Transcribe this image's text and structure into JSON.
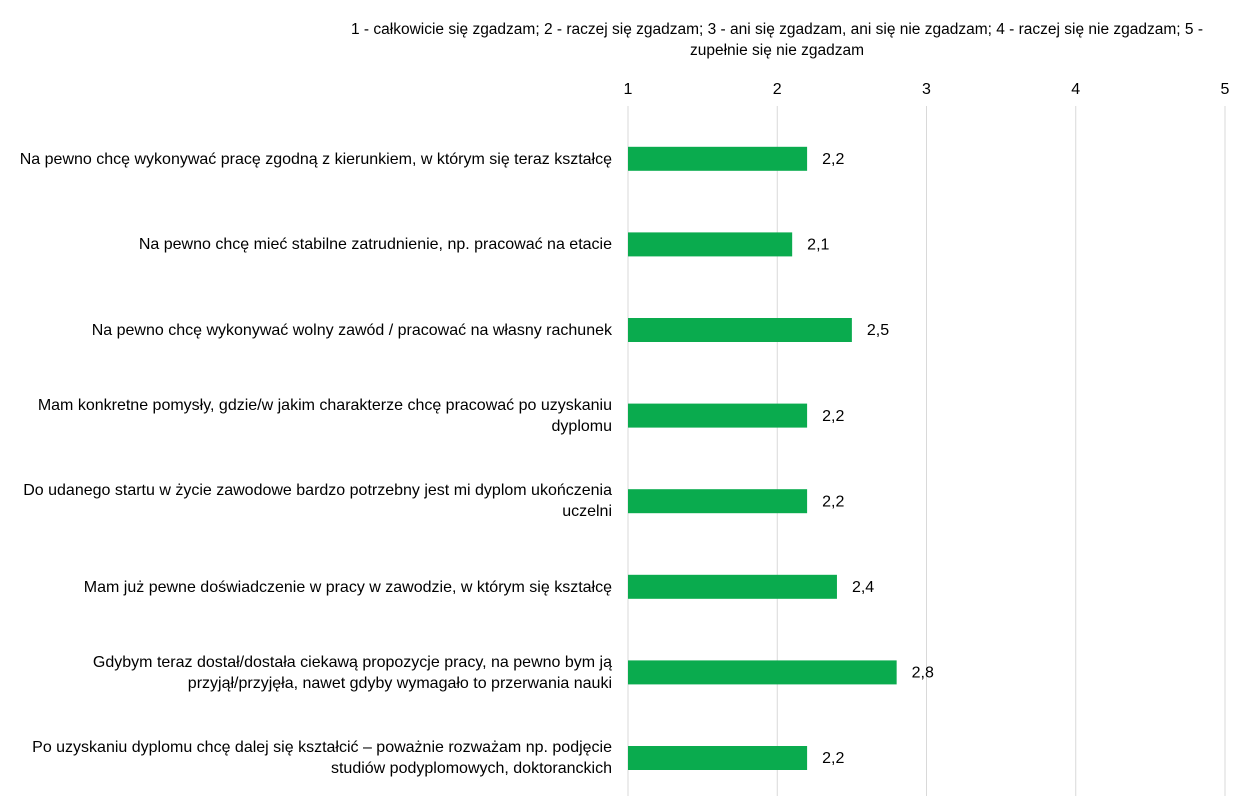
{
  "chart_data": {
    "type": "bar",
    "orientation": "horizontal",
    "title": "1 - całkowicie się zgadzam; 2 - raczej się zgadzam; 3 - ani się zgadzam, ani się nie zgadzam; 4 - raczej się nie zgadzam; 5 - zupełnie się nie zgadzam",
    "categories": [
      "Na pewno chcę wykonywać pracę zgodną z kierunkiem, w którym się teraz kształcę",
      "Na pewno chcę mieć stabilne zatrudnienie, np. pracować na etacie",
      "Na pewno chcę wykonywać wolny zawód / pracować na własny rachunek",
      "Mam konkretne pomysły, gdzie/w jakim charakterze chcę pracować po uzyskaniu dyplomu",
      "Do udanego startu w życie zawodowe bardzo potrzebny jest mi dyplom ukończenia uczelni",
      "Mam już pewne doświadczenie w pracy w zawodzie, w którym się kształcę",
      "Gdybym teraz dostał/dostała ciekawą propozycje pracy, na pewno bym ją przyjął/przyjęła, nawet gdyby wymagało to przerwania nauki",
      "Po uzyskaniu dyplomu chcę dalej się kształcić – poważnie rozważam np. podjęcie studiów podyplomowych, doktoranckich"
    ],
    "values": [
      2.2,
      2.1,
      2.5,
      2.2,
      2.2,
      2.4,
      2.8,
      2.2
    ],
    "value_labels": [
      "2,2",
      "2,1",
      "2,5",
      "2,2",
      "2,2",
      "2,4",
      "2,8",
      "2,2"
    ],
    "color": "#0aab4e",
    "xlim": [
      1,
      5
    ],
    "xticks": [
      1,
      2,
      3,
      4,
      5
    ],
    "grid": true
  }
}
